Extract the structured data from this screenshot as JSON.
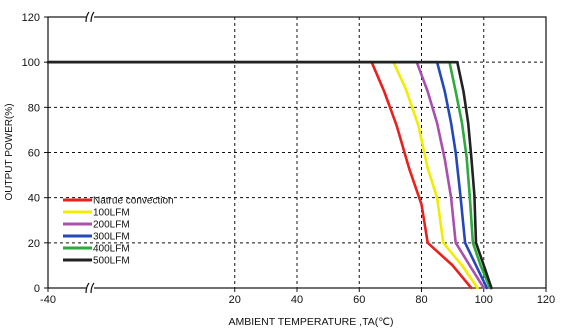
{
  "chart_data": {
    "type": "line",
    "title": "",
    "xlabel": "AMBIENT TEMPERATURE ,TA(℃)",
    "ylabel": "OUTPUT POWER(%)",
    "xlim": [
      -40,
      120
    ],
    "ylim": [
      0,
      120
    ],
    "x_ticks": [
      -40,
      20,
      40,
      60,
      80,
      100,
      120
    ],
    "x_tick_labels": [
      "-40",
      "20",
      "40",
      "60",
      "80",
      "100",
      "120"
    ],
    "y_ticks": [
      0,
      20,
      40,
      60,
      80,
      100,
      120
    ],
    "y_tick_labels": [
      "0",
      "20",
      "40",
      "60",
      "80",
      "100",
      "120"
    ],
    "x_axis_break": "between -40 and 20",
    "y_axis_break": "between 100 and 120",
    "grid": true,
    "grid_style": "dashed",
    "legend_position": "bottom-left",
    "series": [
      {
        "name": "Natrue convection",
        "color": "#e8211d",
        "points": [
          [
            -40,
            100
          ],
          [
            64,
            100
          ],
          [
            68,
            87
          ],
          [
            72,
            72
          ],
          [
            76,
            53
          ],
          [
            80,
            37
          ],
          [
            82,
            20
          ],
          [
            90,
            10
          ],
          [
            96,
            0
          ]
        ]
      },
      {
        "name": "100LFM",
        "color": "#f2ec00",
        "points": [
          [
            -40,
            100
          ],
          [
            71,
            100
          ],
          [
            75,
            88
          ],
          [
            79,
            72
          ],
          [
            82,
            53
          ],
          [
            85,
            40
          ],
          [
            87,
            20
          ],
          [
            93,
            10
          ],
          [
            98,
            0
          ]
        ]
      },
      {
        "name": "200LFM",
        "color": "#a94fb0",
        "points": [
          [
            -40,
            100
          ],
          [
            78.5,
            100
          ],
          [
            82,
            87
          ],
          [
            85,
            73
          ],
          [
            87.5,
            57
          ],
          [
            89.5,
            40
          ],
          [
            91,
            20
          ],
          [
            95.5,
            10
          ],
          [
            100,
            0
          ]
        ]
      },
      {
        "name": "300LFM",
        "color": "#2448b8",
        "points": [
          [
            -40,
            100
          ],
          [
            85,
            100
          ],
          [
            87.5,
            87
          ],
          [
            89.5,
            73
          ],
          [
            91,
            60
          ],
          [
            92.5,
            41
          ],
          [
            94,
            20
          ],
          [
            97.5,
            10
          ],
          [
            101,
            0
          ]
        ]
      },
      {
        "name": "400LFM",
        "color": "#2eaa3c",
        "points": [
          [
            -40,
            100
          ],
          [
            89,
            100
          ],
          [
            91,
            87
          ],
          [
            93,
            73
          ],
          [
            94.5,
            58
          ],
          [
            95.5,
            41
          ],
          [
            96.5,
            20
          ],
          [
            99,
            10
          ],
          [
            102,
            0
          ]
        ]
      },
      {
        "name": "500LFM",
        "color": "#222222",
        "points": [
          [
            -40,
            100
          ],
          [
            91.5,
            100
          ],
          [
            93.5,
            87
          ],
          [
            95,
            73
          ],
          [
            96,
            58
          ],
          [
            97,
            41
          ],
          [
            97.5,
            20
          ],
          [
            100,
            10
          ],
          [
            102.5,
            0
          ]
        ]
      }
    ]
  }
}
